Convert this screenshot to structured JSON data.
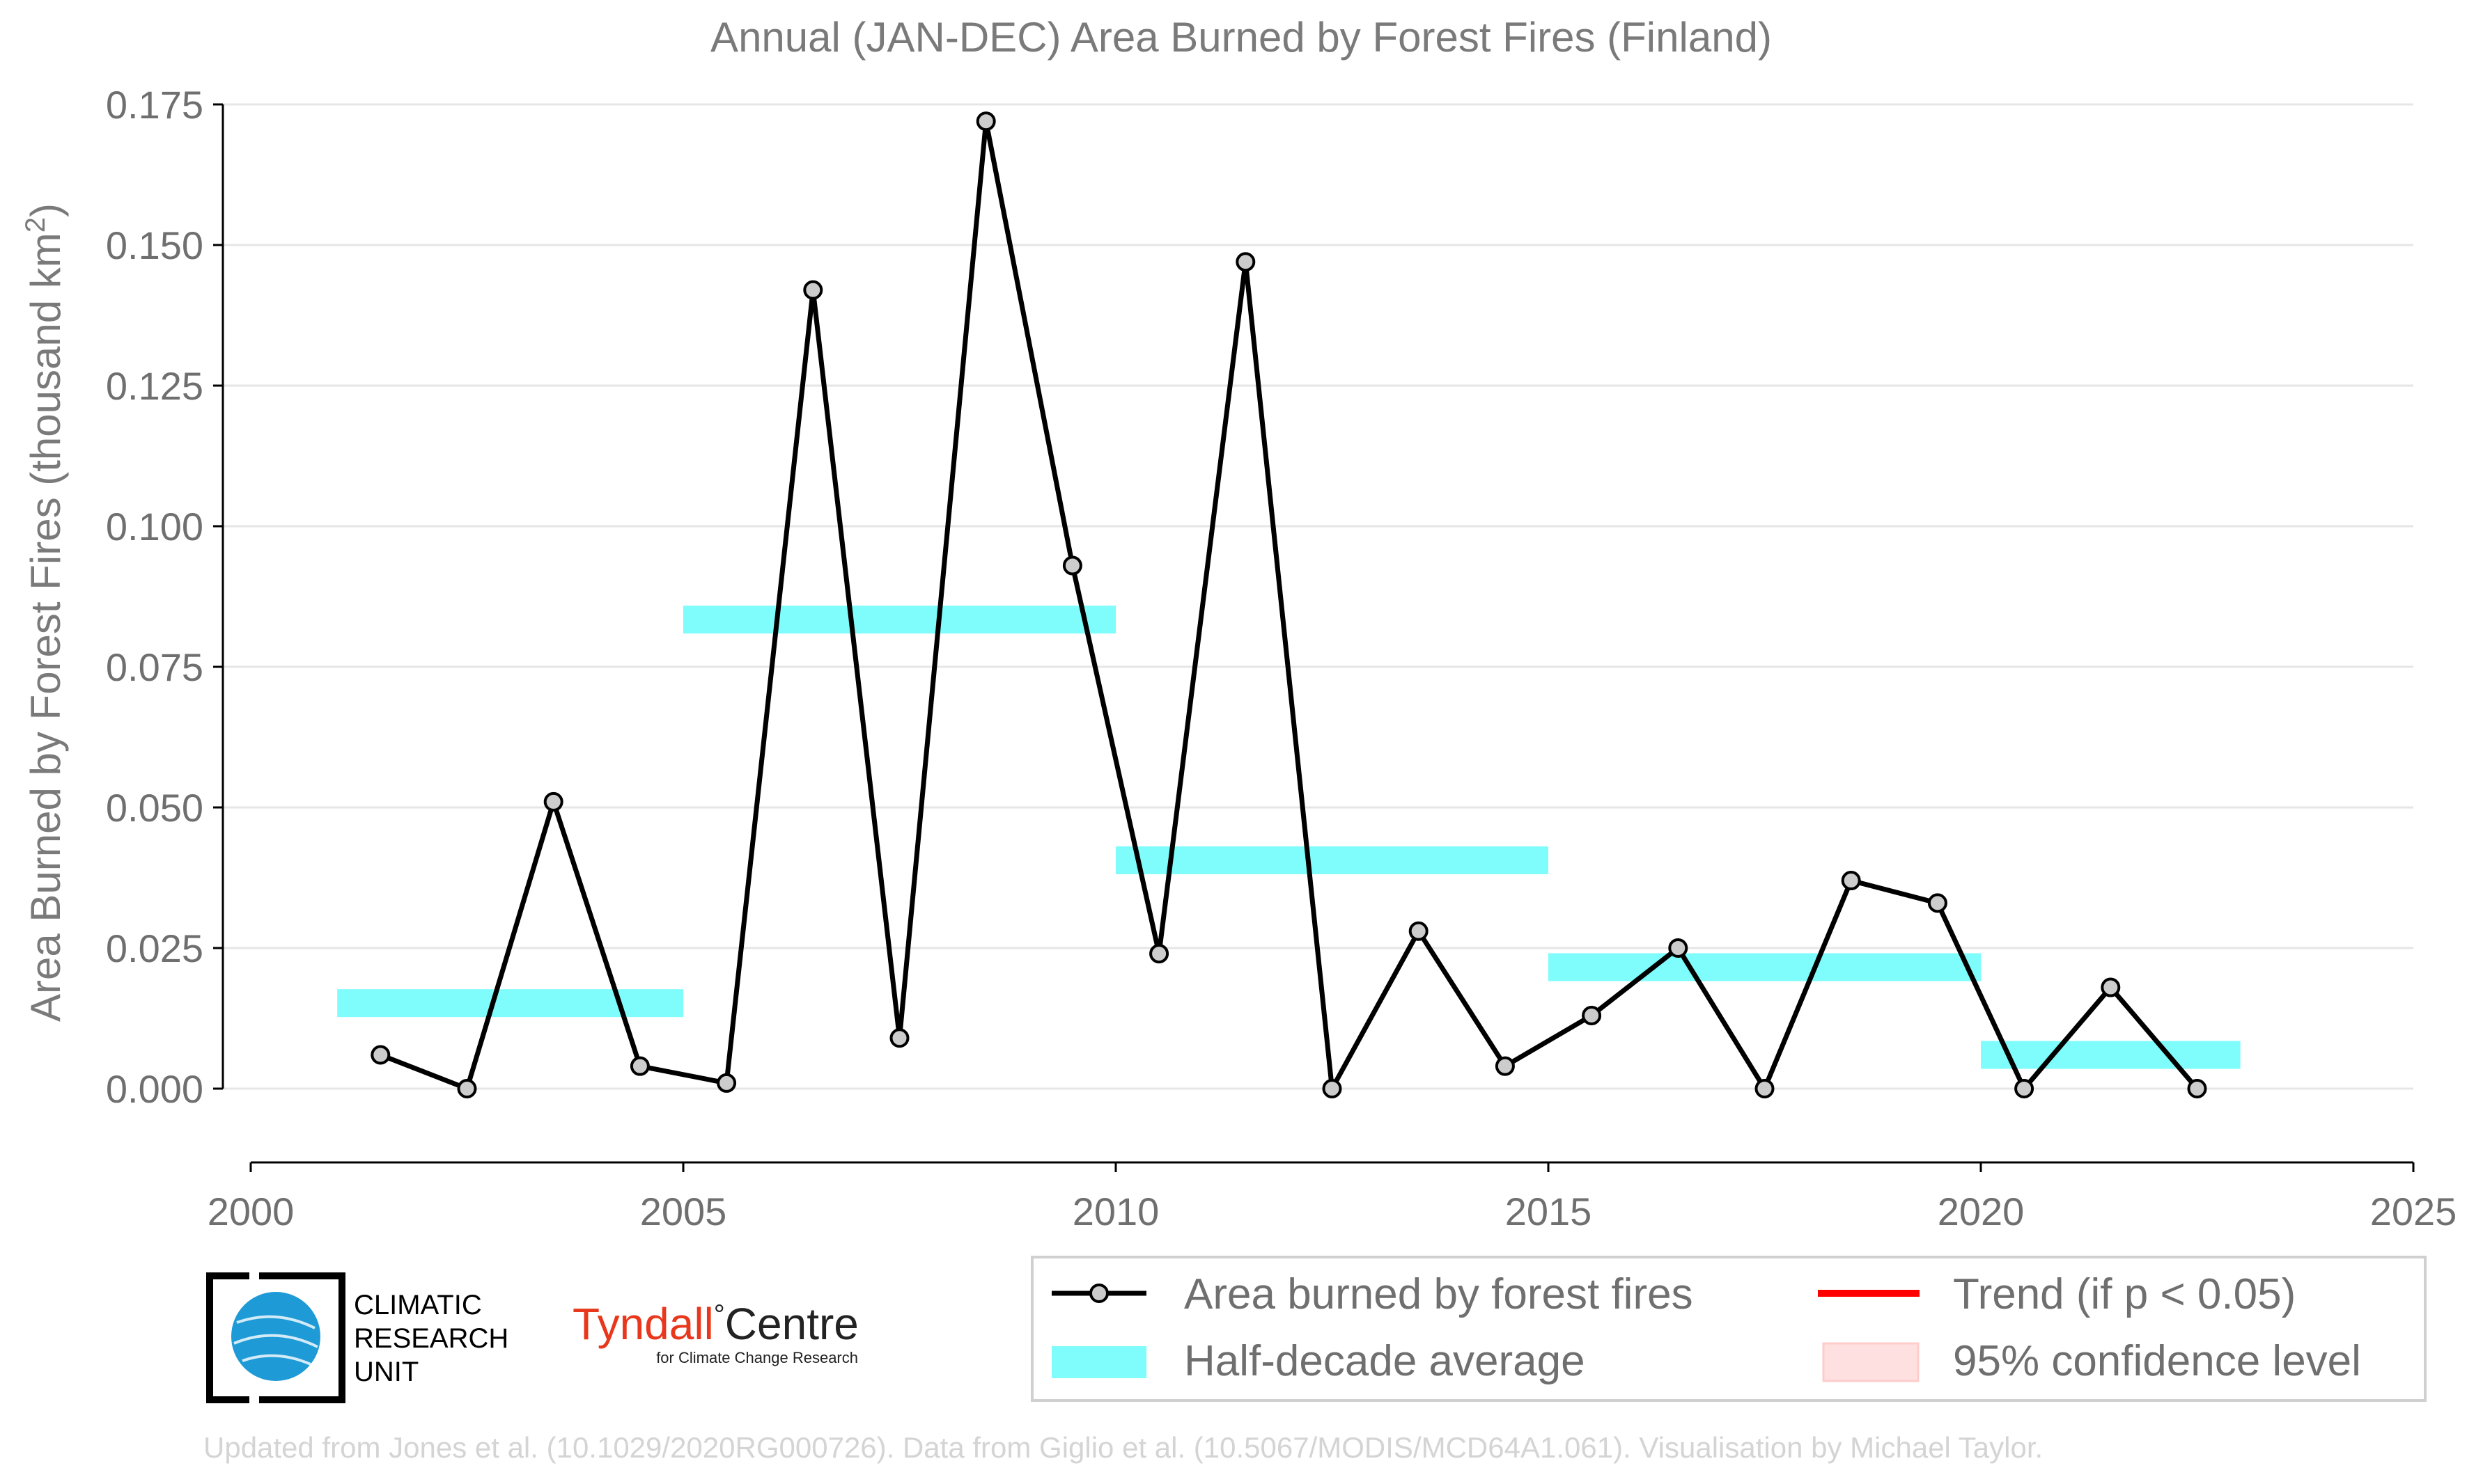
{
  "chart_data": {
    "type": "line",
    "title": "Annual (JAN-DEC) Area Burned by Forest Fires (Finland)",
    "xlabel": "",
    "ylabel": "Area Burned by Forest Fires (thousand km",
    "ylabel_sup": "2",
    "ylabel_close": ")",
    "xlim": [
      2000,
      2025
    ],
    "ylim": [
      -0.02,
      0.175
    ],
    "x_ticks": [
      2000,
      2005,
      2010,
      2015,
      2020,
      2025
    ],
    "x_tick_labels": [
      "2000",
      "2005",
      "2010",
      "2015",
      "2020",
      "2025"
    ],
    "y_ticks": [
      0.0,
      0.025,
      0.05,
      0.075,
      0.1,
      0.125,
      0.15,
      0.175
    ],
    "y_tick_labels": [
      "0.000",
      "0.025",
      "0.050",
      "0.075",
      "0.100",
      "0.125",
      "0.150",
      "0.175"
    ],
    "grid": "horizontal",
    "legend_position": "bottom-right",
    "series": [
      {
        "name": "Area burned by forest fires",
        "color": "#000000",
        "marker_color": "#cccccc",
        "x": [
          2001.5,
          2002.5,
          2003.5,
          2004.5,
          2005.5,
          2006.5,
          2007.5,
          2008.5,
          2009.5,
          2010.5,
          2011.5,
          2012.5,
          2013.5,
          2014.5,
          2015.5,
          2016.5,
          2017.5,
          2018.5,
          2019.5,
          2020.5,
          2021.5,
          2022.5
        ],
        "values": [
          0.006,
          0.0,
          0.051,
          0.004,
          0.001,
          0.142,
          0.009,
          0.172,
          0.093,
          0.024,
          0.147,
          0.0,
          0.028,
          0.004,
          0.013,
          0.025,
          0.0,
          0.037,
          0.033,
          0.0,
          0.018,
          0.0
        ]
      }
    ],
    "half_decade_averages": {
      "name": "Half-decade average",
      "color": "#7ffcfc",
      "segments": [
        {
          "x_start": 2001,
          "x_end": 2005,
          "value": 0.0152
        },
        {
          "x_start": 2005,
          "x_end": 2010,
          "value": 0.0834
        },
        {
          "x_start": 2010,
          "x_end": 2015,
          "value": 0.0406
        },
        {
          "x_start": 2015,
          "x_end": 2020,
          "value": 0.0216
        },
        {
          "x_start": 2020,
          "x_end": 2023,
          "value": 0.006
        }
      ]
    },
    "legend": [
      {
        "label": "Area burned by forest fires",
        "kind": "line-marker",
        "color": "#000000"
      },
      {
        "label": "Trend (if p < 0.05)",
        "kind": "line",
        "color": "#ff0000"
      },
      {
        "label": "Half-decade average",
        "kind": "band",
        "color": "#7ffcfc"
      },
      {
        "label": "95% confidence level",
        "kind": "fill",
        "color": "#ffe0e0"
      }
    ]
  },
  "logos": {
    "cru_lines": [
      "CLIMATIC",
      "RESEARCH",
      "UNIT"
    ],
    "tyndall_name": "Tyndall",
    "tyndall_degree": "°",
    "tyndall_centre": "Centre",
    "tyndall_sub": "for Climate Change Research",
    "tyndall_color": "#e8371c"
  },
  "credit": "Updated from Jones et al. (10.1029/2020RG000726). Data from Giglio et al. (10.5067/MODIS/MCD64A1.061). Visualisation by Michael Taylor."
}
